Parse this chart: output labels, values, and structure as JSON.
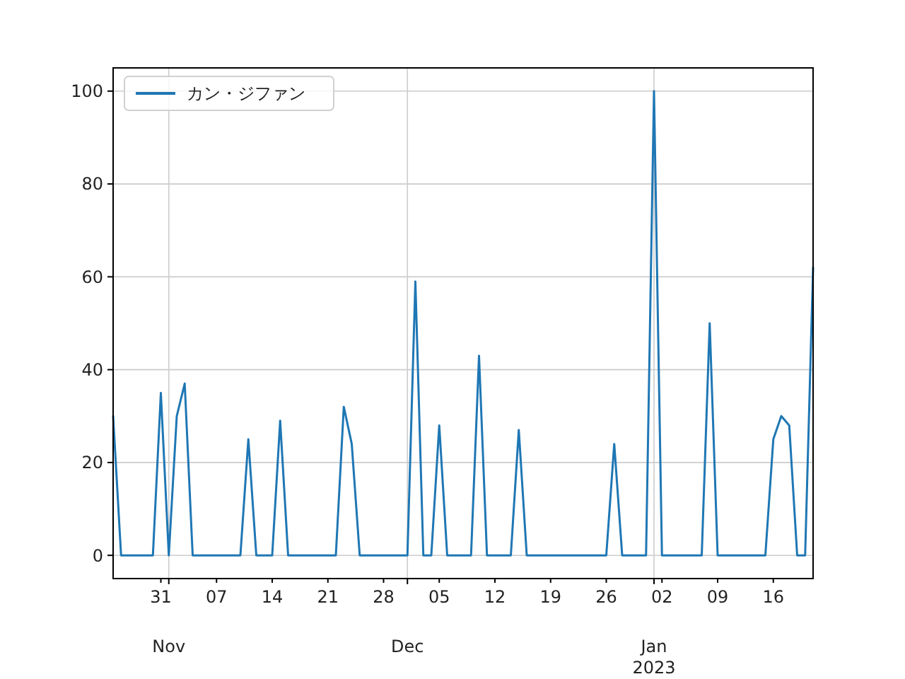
{
  "chart_data": {
    "type": "line",
    "x": [
      "2022-10-25",
      "2022-10-26",
      "2022-10-27",
      "2022-10-28",
      "2022-10-29",
      "2022-10-30",
      "2022-10-31",
      "2022-11-01",
      "2022-11-02",
      "2022-11-03",
      "2022-11-04",
      "2022-11-05",
      "2022-11-06",
      "2022-11-07",
      "2022-11-08",
      "2022-11-09",
      "2022-11-10",
      "2022-11-11",
      "2022-11-12",
      "2022-11-13",
      "2022-11-14",
      "2022-11-15",
      "2022-11-16",
      "2022-11-17",
      "2022-11-18",
      "2022-11-19",
      "2022-11-20",
      "2022-11-21",
      "2022-11-22",
      "2022-11-23",
      "2022-11-24",
      "2022-11-25",
      "2022-11-26",
      "2022-11-27",
      "2022-11-28",
      "2022-11-29",
      "2022-11-30",
      "2022-12-01",
      "2022-12-02",
      "2022-12-03",
      "2022-12-04",
      "2022-12-05",
      "2022-12-06",
      "2022-12-07",
      "2022-12-08",
      "2022-12-09",
      "2022-12-10",
      "2022-12-11",
      "2022-12-12",
      "2022-12-13",
      "2022-12-14",
      "2022-12-15",
      "2022-12-16",
      "2022-12-17",
      "2022-12-18",
      "2022-12-19",
      "2022-12-20",
      "2022-12-21",
      "2022-12-22",
      "2022-12-23",
      "2022-12-24",
      "2022-12-25",
      "2022-12-26",
      "2022-12-27",
      "2022-12-28",
      "2022-12-29",
      "2022-12-30",
      "2022-12-31",
      "2023-01-01",
      "2023-01-02",
      "2023-01-03",
      "2023-01-04",
      "2023-01-05",
      "2023-01-06",
      "2023-01-07",
      "2023-01-08",
      "2023-01-09",
      "2023-01-10",
      "2023-01-11",
      "2023-01-12",
      "2023-01-13",
      "2023-01-14",
      "2023-01-15",
      "2023-01-16",
      "2023-01-17",
      "2023-01-18",
      "2023-01-19",
      "2023-01-20",
      "2023-01-21"
    ],
    "series": [
      {
        "name": "カン・ジファン",
        "color": "#1f77b4",
        "values": [
          30,
          0,
          0,
          0,
          0,
          0,
          35,
          0,
          30,
          37,
          0,
          0,
          0,
          0,
          0,
          0,
          0,
          25,
          0,
          0,
          0,
          29,
          0,
          0,
          0,
          0,
          0,
          0,
          0,
          32,
          24,
          0,
          0,
          0,
          0,
          0,
          0,
          0,
          59,
          0,
          0,
          28,
          0,
          0,
          0,
          0,
          43,
          0,
          0,
          0,
          0,
          27,
          0,
          0,
          0,
          0,
          0,
          0,
          0,
          0,
          0,
          0,
          0,
          24,
          0,
          0,
          0,
          0,
          100,
          0,
          0,
          0,
          0,
          0,
          0,
          50,
          0,
          0,
          0,
          0,
          0,
          0,
          0,
          25,
          30,
          28,
          0,
          0,
          62
        ]
      }
    ],
    "xlim": [
      "2022-10-25",
      "2023-01-21"
    ],
    "xticks": [
      {
        "value": "2022-10-31",
        "label": "31"
      },
      {
        "value": "2022-11-01",
        "label": null
      },
      {
        "value": "2022-11-07",
        "label": "07"
      },
      {
        "value": "2022-11-14",
        "label": "14"
      },
      {
        "value": "2022-11-21",
        "label": "21"
      },
      {
        "value": "2022-11-28",
        "label": "28"
      },
      {
        "value": "2022-12-01",
        "label": null
      },
      {
        "value": "2022-12-05",
        "label": "05"
      },
      {
        "value": "2022-12-12",
        "label": "12"
      },
      {
        "value": "2022-12-19",
        "label": "19"
      },
      {
        "value": "2022-12-26",
        "label": "26"
      },
      {
        "value": "2023-01-01",
        "label": null
      },
      {
        "value": "2023-01-02",
        "label": "02"
      },
      {
        "value": "2023-01-09",
        "label": "09"
      },
      {
        "value": "2023-01-16",
        "label": "16"
      }
    ],
    "ylim": [
      -5,
      105
    ],
    "yticks": [
      0,
      20,
      40,
      60,
      80,
      100
    ],
    "annotations": [
      "Nov",
      "Dec",
      "Jan\n2023"
    ],
    "grid": true,
    "legend": "top left",
    "line_style": "solid",
    "marker": "none"
  }
}
